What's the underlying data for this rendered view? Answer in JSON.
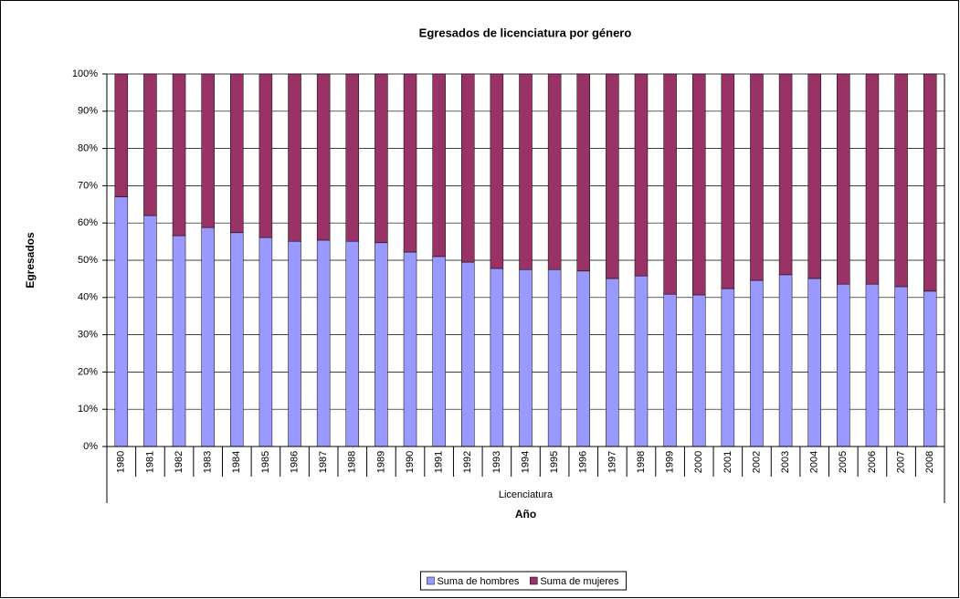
{
  "chart_data": {
    "type": "stacked_bar_100",
    "title": "Egresados de licenciatura por género",
    "y_label": "Egresados",
    "category_group": "Licenciatura",
    "x_label": "Año",
    "categories": [
      "1980",
      "1981",
      "1982",
      "1983",
      "1984",
      "1985",
      "1986",
      "1987",
      "1988",
      "1989",
      "1990",
      "1991",
      "1992",
      "1993",
      "1994",
      "1995",
      "1996",
      "1997",
      "1998",
      "1999",
      "2000",
      "2001",
      "2002",
      "2003",
      "2004",
      "2005",
      "2006",
      "2007",
      "2008"
    ],
    "series": [
      {
        "name": "Suma de hombres",
        "color": "#9999ff",
        "values": [
          67,
          62,
          56.6,
          58.8,
          57.4,
          56.1,
          55.1,
          55.4,
          55.1,
          54.7,
          52.2,
          51,
          49.5,
          47.8,
          47.5,
          47.5,
          47.1,
          45.1,
          45.8,
          40.9,
          40.7,
          42.4,
          44.6,
          46.1,
          45.1,
          43.6,
          43.6,
          42.9,
          41.7
        ]
      },
      {
        "name": "Suma de mujeres",
        "color": "#993366",
        "values": [
          33,
          38,
          43.4,
          41.2,
          42.6,
          43.9,
          44.9,
          44.6,
          44.9,
          45.3,
          47.8,
          49,
          50.5,
          52.2,
          52.5,
          52.5,
          52.9,
          54.9,
          54.2,
          59.1,
          59.3,
          57.6,
          55.4,
          53.9,
          54.9,
          56.4,
          56.4,
          57.1,
          58.3
        ]
      }
    ],
    "ylim": [
      0,
      100
    ],
    "yticks": [
      {
        "value": 0,
        "label": "0%"
      },
      {
        "value": 10,
        "label": "10%"
      },
      {
        "value": 20,
        "label": "20%"
      },
      {
        "value": 30,
        "label": "30%"
      },
      {
        "value": 40,
        "label": "40%"
      },
      {
        "value": 50,
        "label": "50%"
      },
      {
        "value": 60,
        "label": "60%"
      },
      {
        "value": 70,
        "label": "70%"
      },
      {
        "value": 80,
        "label": "80%"
      },
      {
        "value": 90,
        "label": "90%"
      },
      {
        "value": 100,
        "label": "100%"
      }
    ],
    "grid": true,
    "legend": "bottom"
  }
}
